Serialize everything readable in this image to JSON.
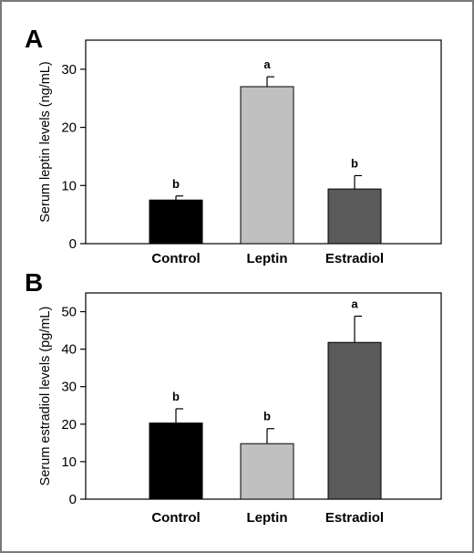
{
  "chart_data": [
    {
      "type": "bar",
      "panel_label": "A",
      "ylabel": "Serum leptin levels (ng/mL)",
      "xlabel": "",
      "categories": [
        "Control",
        "Leptin",
        "Estradiol"
      ],
      "values": [
        7.5,
        27.0,
        9.4
      ],
      "errors": [
        0.7,
        1.7,
        2.3
      ],
      "significance": [
        "b",
        "a",
        "b"
      ],
      "ylim": [
        0,
        35
      ],
      "yticks": [
        "0",
        "10",
        "20",
        "30"
      ],
      "ytick_values": [
        0,
        10,
        20,
        30
      ],
      "colors": [
        "#000000",
        "#c0c0c0",
        "#5a5a5a"
      ],
      "grid": false
    },
    {
      "type": "bar",
      "panel_label": "B",
      "ylabel": "Serum estradiol levels (pg/mL)",
      "xlabel": "",
      "categories": [
        "Control",
        "Leptin",
        "Estradiol"
      ],
      "values": [
        20.3,
        14.8,
        41.8
      ],
      "errors": [
        3.8,
        4.0,
        7.0
      ],
      "significance": [
        "b",
        "b",
        "a"
      ],
      "ylim": [
        0,
        55
      ],
      "yticks": [
        "0",
        "10",
        "20",
        "30",
        "40",
        "50"
      ],
      "ytick_values": [
        0,
        10,
        20,
        30,
        40,
        50
      ],
      "colors": [
        "#000000",
        "#c0c0c0",
        "#5a5a5a"
      ],
      "grid": false
    }
  ]
}
